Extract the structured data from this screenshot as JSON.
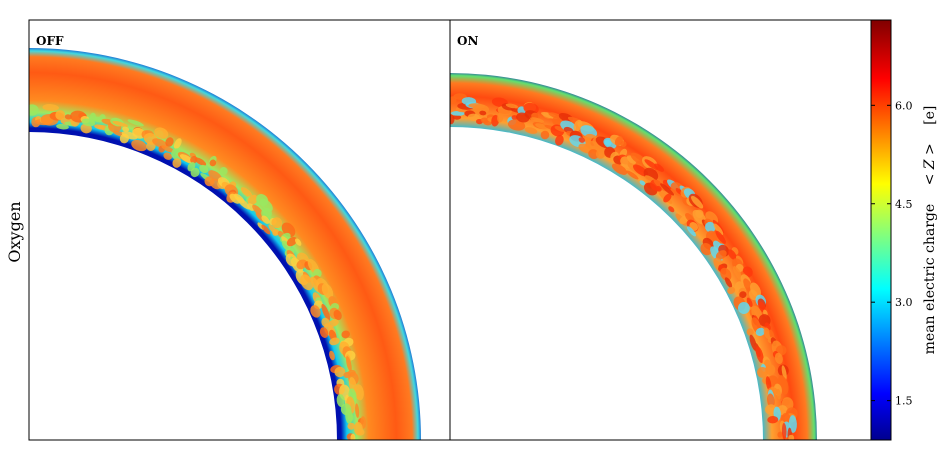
{
  "chart_data": {
    "type": "heatmap",
    "row_label": "Oxygen",
    "panels": [
      {
        "label": "OFF"
      },
      {
        "label": "ON"
      }
    ],
    "colorbar": {
      "label_text": "mean electric charge",
      "label_symbol": "< Z >",
      "label_unit": "[e]",
      "colormap": "jet",
      "range": [
        0.9,
        7.3
      ],
      "ticks": [
        1.5,
        3.0,
        4.5,
        6.0
      ],
      "tick_labels": [
        "1.5",
        "3.0",
        "4.5",
        "6.0"
      ]
    }
  },
  "colors": {
    "shell_fill": "#ff5a14",
    "shell_hot": "#ff3c0a",
    "inner_edge": "#1020d0",
    "gradient_mid": "#20d0e0",
    "axis": "#000000"
  }
}
